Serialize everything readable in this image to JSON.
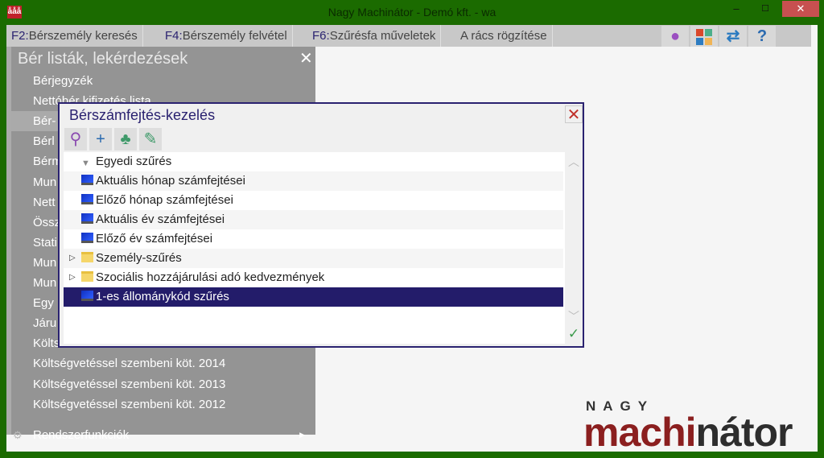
{
  "window": {
    "title": "Nagy Machinátor - Demó kft. - wa",
    "app_icon": "people-logo-icon",
    "minimize": "–",
    "maximize": "☐",
    "close": "✕"
  },
  "menubar": [
    {
      "key": "F2:",
      "label": "Bérszemély keresés"
    },
    {
      "key": "F4:",
      "label": "Bérszemély  felvétel"
    },
    {
      "key": "F6:",
      "label": "Szűrésfa műveletek"
    },
    {
      "key": "",
      "label": "A rács rögzítése"
    }
  ],
  "toolbar_icons": [
    "user-icon",
    "tiles-icon",
    "swap-arrows-icon",
    "help-icon"
  ],
  "sidebar": {
    "title": "Bér listák, lekérdezések",
    "close": "✕",
    "items": [
      "Bérjegyzék",
      "Nettóbér kifizetés lista",
      "Bér-",
      "Bérl",
      "Bérm",
      "Mun",
      "Nett",
      "Össz",
      "Stati",
      "Mun",
      "Mun",
      "Egy",
      "Járu",
      "Költs",
      "Költségvetéssel szembeni köt. 2014",
      "Költségvetéssel szembeni köt. 2013",
      "Költségvetéssel szembeni köt. 2012"
    ],
    "system": "Rendszerfunkciók",
    "selected_index": 2
  },
  "dialog": {
    "title": "Bérszámfejtés-kezelés",
    "close": "✕",
    "tools": [
      "search-icon",
      "add-icon",
      "tree-icon",
      "pin-icon"
    ],
    "rows": [
      {
        "label": "Egyedi szűrés",
        "icon": "filter-icon"
      },
      {
        "label": "Aktuális hónap számfejtései",
        "icon": "computer-icon"
      },
      {
        "label": "Előző hónap számfejtései",
        "icon": "computer-icon"
      },
      {
        "label": "Aktuális év számfejtései",
        "icon": "computer-icon"
      },
      {
        "label": "Előző év számfejtései",
        "icon": "computer-icon"
      },
      {
        "label": "Személy-szűrés",
        "icon": "folder-icon",
        "expandable": true
      },
      {
        "label": "Szociális hozzájárulási adó kedvezmények",
        "icon": "folder-icon",
        "expandable": true
      },
      {
        "label": "1-es állománykód szűrés",
        "icon": "computer-icon",
        "selected": true
      }
    ],
    "ok": "✓"
  },
  "logo": {
    "top": "NAGY",
    "main_a": "machi",
    "main_b": "nátor"
  },
  "colors": {
    "frame": "#1b6b00",
    "accent": "#2a2270",
    "selected_row": "#231c6a",
    "logo_red": "#8b1f1f"
  }
}
